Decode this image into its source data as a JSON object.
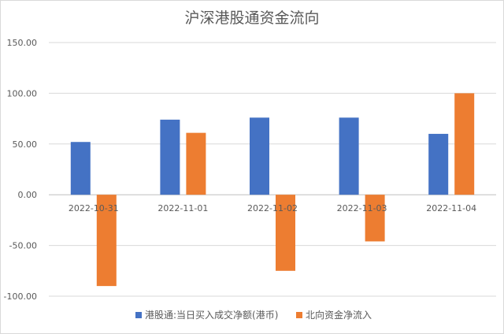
{
  "chart_data": {
    "type": "bar",
    "title": "沪深港股通资金流向",
    "categories": [
      "2022-10-31",
      "2022-11-01",
      "2022-11-02",
      "2022-11-03",
      "2022-11-04"
    ],
    "series": [
      {
        "name": "港股通:当日买入成交净额(港币)",
        "color": "#4472C4",
        "values": [
          52,
          74,
          76,
          76,
          60
        ]
      },
      {
        "name": "北向资金净流入",
        "color": "#ED7D31",
        "values": [
          -90,
          61,
          -75,
          -46,
          100
        ]
      }
    ],
    "ylim": [
      -100,
      150
    ],
    "yticks": [
      "150.00",
      "100.00",
      "50.00",
      "0.00",
      "-50.00",
      "-100.00"
    ],
    "ytick_values": [
      150,
      100,
      50,
      0,
      -50,
      -100
    ],
    "grid": true,
    "legend_position": "bottom"
  }
}
